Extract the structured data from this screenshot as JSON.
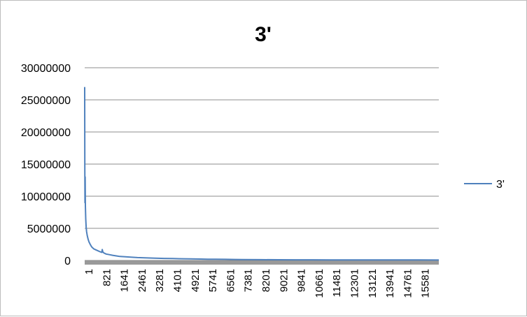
{
  "chart_data": {
    "type": "line",
    "title": "3'",
    "xlabel": "",
    "ylabel": "",
    "ylim": [
      0,
      30000000
    ],
    "yticks": [
      "0",
      "5000000",
      "10000000",
      "15000000",
      "20000000",
      "25000000",
      "30000000"
    ],
    "xticks": [
      "1",
      "821",
      "1641",
      "2461",
      "3281",
      "4101",
      "4921",
      "5741",
      "6561",
      "7381",
      "8201",
      "9021",
      "9841",
      "10661",
      "11481",
      "12301",
      "13121",
      "13941",
      "14761",
      "15581"
    ],
    "xlim": [
      1,
      16500
    ],
    "grid": true,
    "legend_position": "right",
    "series": [
      {
        "name": "3'",
        "color": "#4F81BD",
        "x": [
          1,
          8,
          15,
          25,
          35,
          50,
          70,
          90,
          120,
          160,
          200,
          260,
          330,
          420,
          520,
          620,
          720,
          800,
          821,
          850,
          900,
          1000,
          1150,
          1300,
          1500,
          1641,
          1900,
          2200,
          2461,
          2800,
          3281,
          3700,
          4101,
          4600,
          4921,
          5400,
          5741,
          6100,
          6561,
          7000,
          7381,
          8201,
          9021,
          9841,
          10661,
          11481,
          12301,
          13121,
          13941,
          14761,
          15581,
          16500
        ],
        "values": [
          27000000,
          14000000,
          9000000,
          13000000,
          8500000,
          6500000,
          5200000,
          4500000,
          3900000,
          3300000,
          2900000,
          2500000,
          2100000,
          1800000,
          1650000,
          1500000,
          1350000,
          1250000,
          1700000,
          1300000,
          1150000,
          1000000,
          900000,
          800000,
          700000,
          620000,
          560000,
          500000,
          450000,
          400000,
          360000,
          320000,
          290000,
          260000,
          240000,
          220000,
          200000,
          185000,
          170000,
          155000,
          140000,
          125000,
          110000,
          100000,
          95000,
          90000,
          85000,
          80000,
          78000,
          75000,
          72000,
          70000
        ]
      }
    ]
  }
}
